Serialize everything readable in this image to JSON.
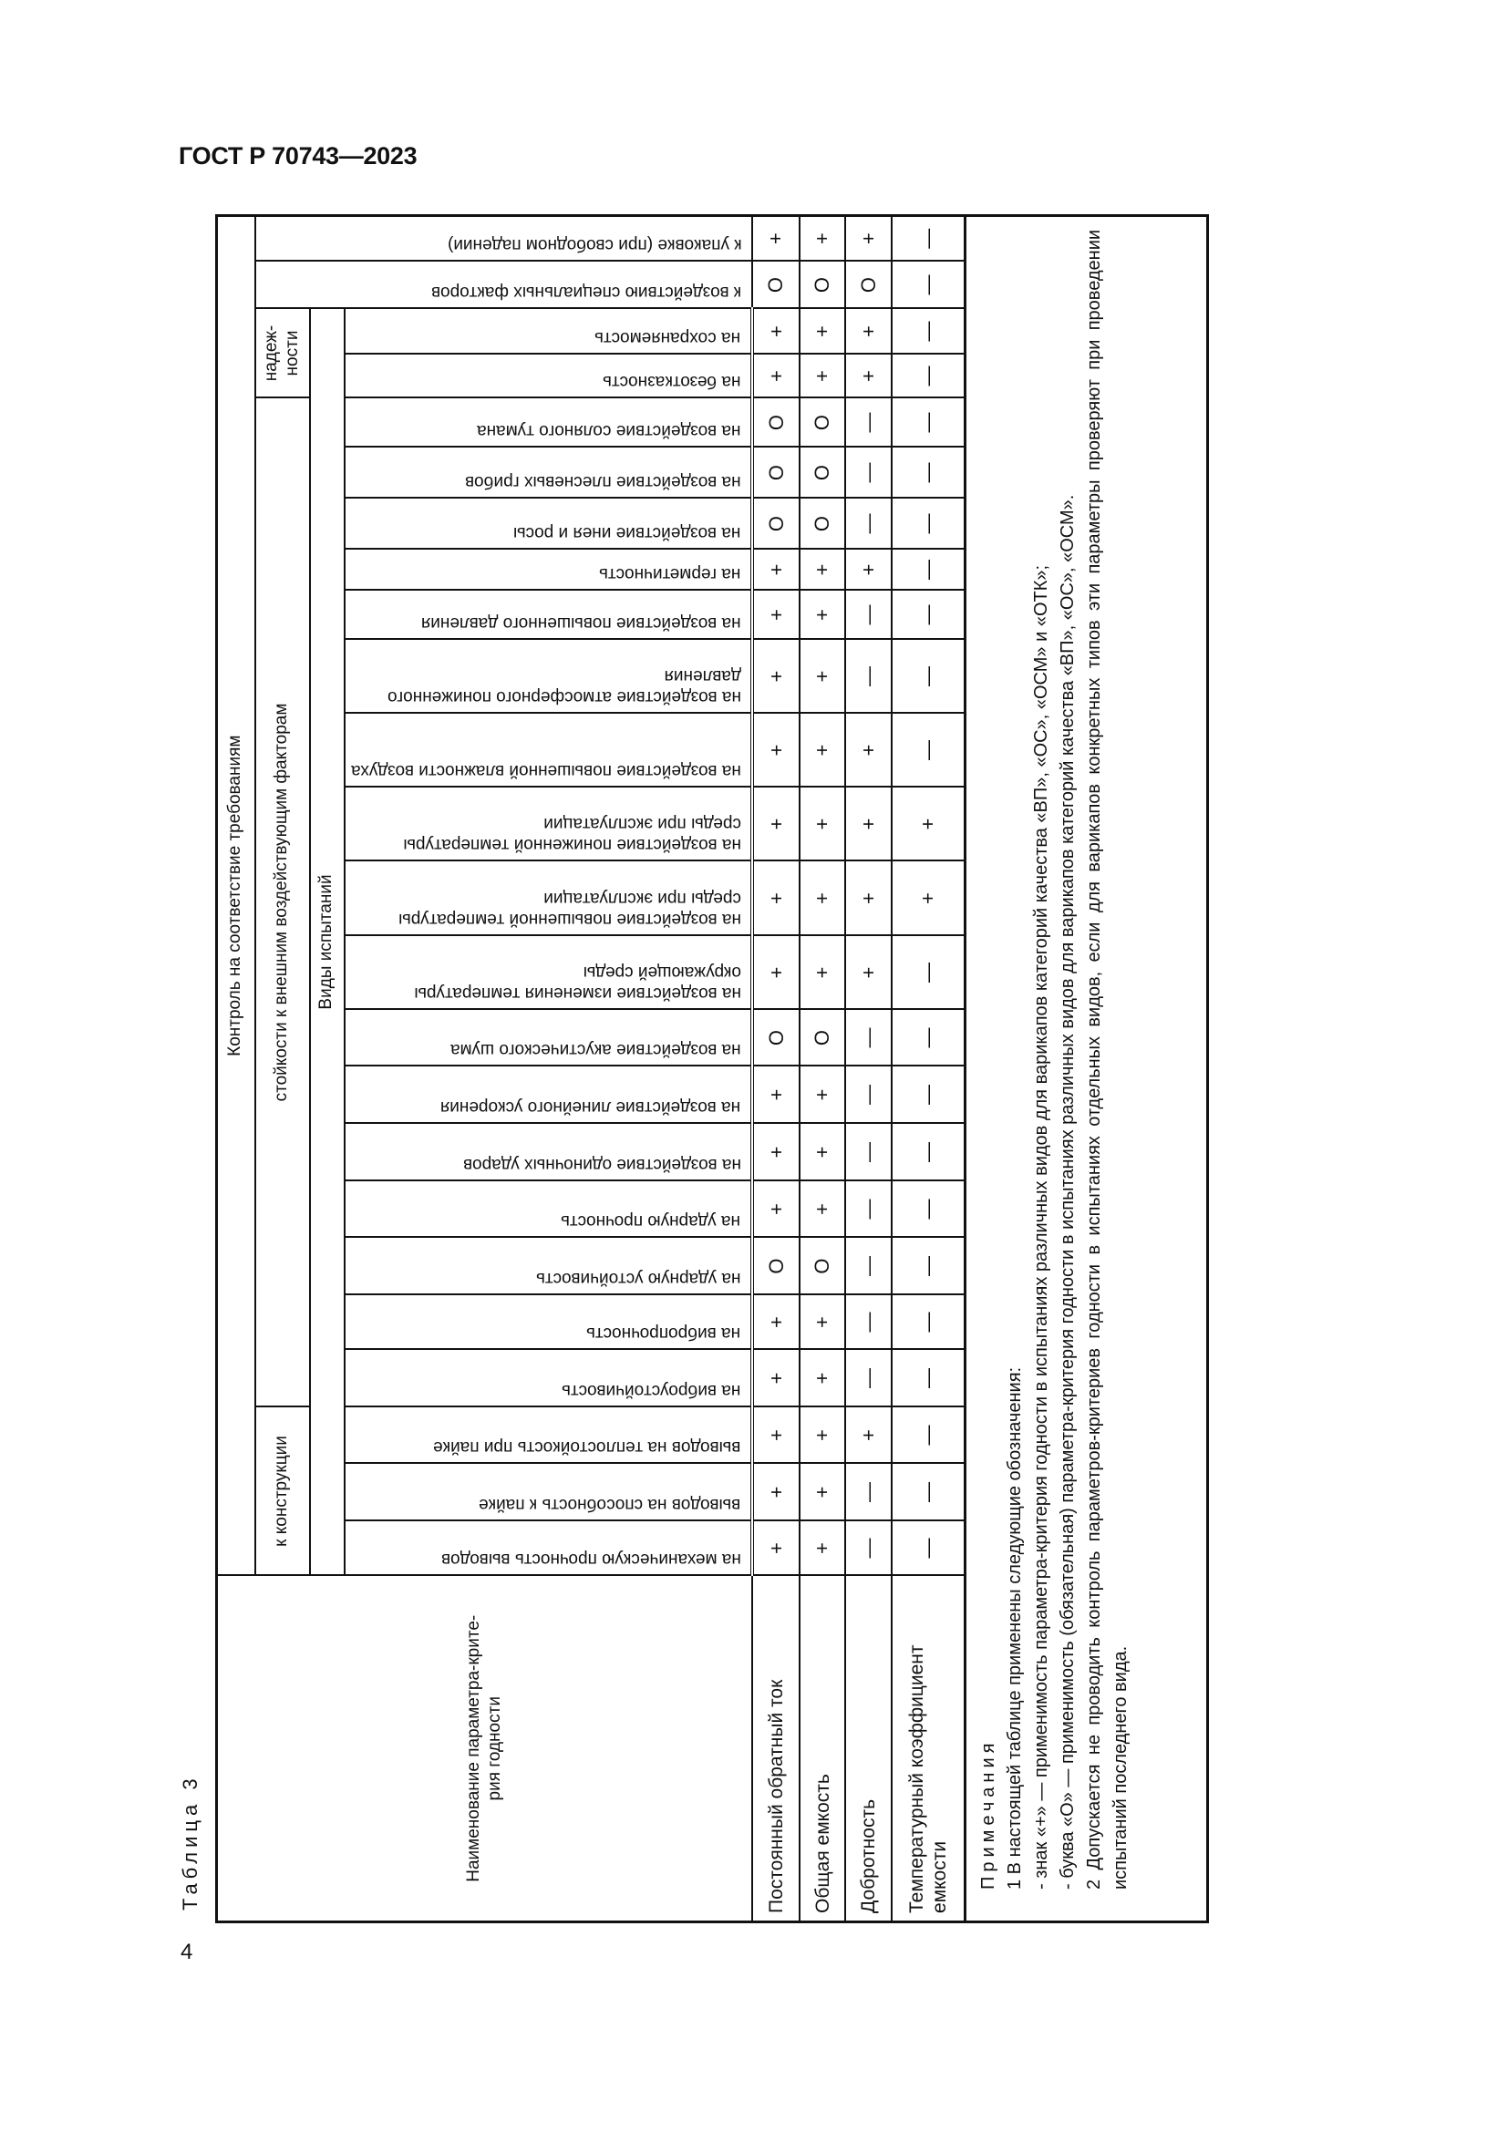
{
  "header": {
    "doc_id": "ГОСТ Р 70743—2023"
  },
  "page_number": "4",
  "table": {
    "caption": "Таблица 3",
    "param_header": "Наименование параметра-крите-рия годности",
    "group_main": "Контроль на соответствие требованиям",
    "group_construction": "к конструкции",
    "group_resistance": "стойкости к внешним воздействующим факторам",
    "group_reliability": "надеж-ности",
    "test_types_label": "Виды испытаний",
    "special_factors": "к воздействию специальных факторов",
    "packaging": "к упаковке (при свободном падении)",
    "tests": [
      "на механическую прочность выводов",
      "выводов на способность к пайке",
      "выводов на теплостойкость при пайке",
      "на виброустойчивость",
      "на вибропрочность",
      "на ударную устойчивость",
      "на ударную прочность",
      "на воздействие одиночных ударов",
      "на воздействие линейного ускорения",
      "на воздействие акустического шума",
      "на воздействие изменения температуры окружающей среды",
      "на воздействие повышенной температуры среды при эксплуатации",
      "на воздействие пониженной температуры среды при эксплуатации",
      "на воздействие повышенной влажности воздуха",
      "на воздействие атмосферного пониженного давления",
      "на воздействие повышенного давления",
      "на герметичность",
      "на воздействие инея и росы",
      "на воздействие плесневых грибов",
      "на воздействие соляного тумана",
      "на безотказность",
      "на сохраняемость"
    ],
    "rows": [
      {
        "name": "Постоянный обратный ток",
        "values": [
          "+",
          "+",
          "+",
          "+",
          "+",
          "O",
          "+",
          "+",
          "+",
          "O",
          "+",
          "+",
          "+",
          "+",
          "+",
          "+",
          "+",
          "O",
          "O",
          "O",
          "+",
          "+",
          "O",
          "+"
        ]
      },
      {
        "name": "Общая емкость",
        "values": [
          "+",
          "+",
          "+",
          "+",
          "+",
          "O",
          "+",
          "+",
          "+",
          "O",
          "+",
          "+",
          "+",
          "+",
          "+",
          "+",
          "+",
          "O",
          "O",
          "O",
          "+",
          "+",
          "O",
          "+"
        ]
      },
      {
        "name": "Добротность",
        "values": [
          "—",
          "—",
          "+",
          "—",
          "—",
          "—",
          "—",
          "—",
          "—",
          "—",
          "+",
          "+",
          "+",
          "+",
          "—",
          "—",
          "+",
          "—",
          "—",
          "—",
          "+",
          "+",
          "O",
          "+"
        ]
      },
      {
        "name": "Температурный коэффициент емкости",
        "values": [
          "—",
          "—",
          "—",
          "—",
          "—",
          "—",
          "—",
          "—",
          "—",
          "—",
          "—",
          "+",
          "+",
          "—",
          "—",
          "—",
          "—",
          "—",
          "—",
          "—",
          "—",
          "—",
          "—",
          "—"
        ]
      }
    ],
    "notes": {
      "title": "Примечания",
      "n1": "1 В настоящей таблице применены следующие обозначения:",
      "n1a": "- знак «+» — применимость параметра-критерия годности в испытаниях различных видов для варикапов категорий качества «ВП», «ОС», «ОСМ» и «ОТК»;",
      "n1b": "- буква «О» — применимость (обязательная) параметра-критерия годности в испытаниях различных видов для варикапов категорий качества «ВП», «ОС», «ОСМ».",
      "n2": "2 Допускается не проводить контроль параметров-критериев годности в испытаниях отдельных видов, если для варикапов конкретных типов эти параметры проверяют при проведении испытаний последнего вида."
    }
  }
}
